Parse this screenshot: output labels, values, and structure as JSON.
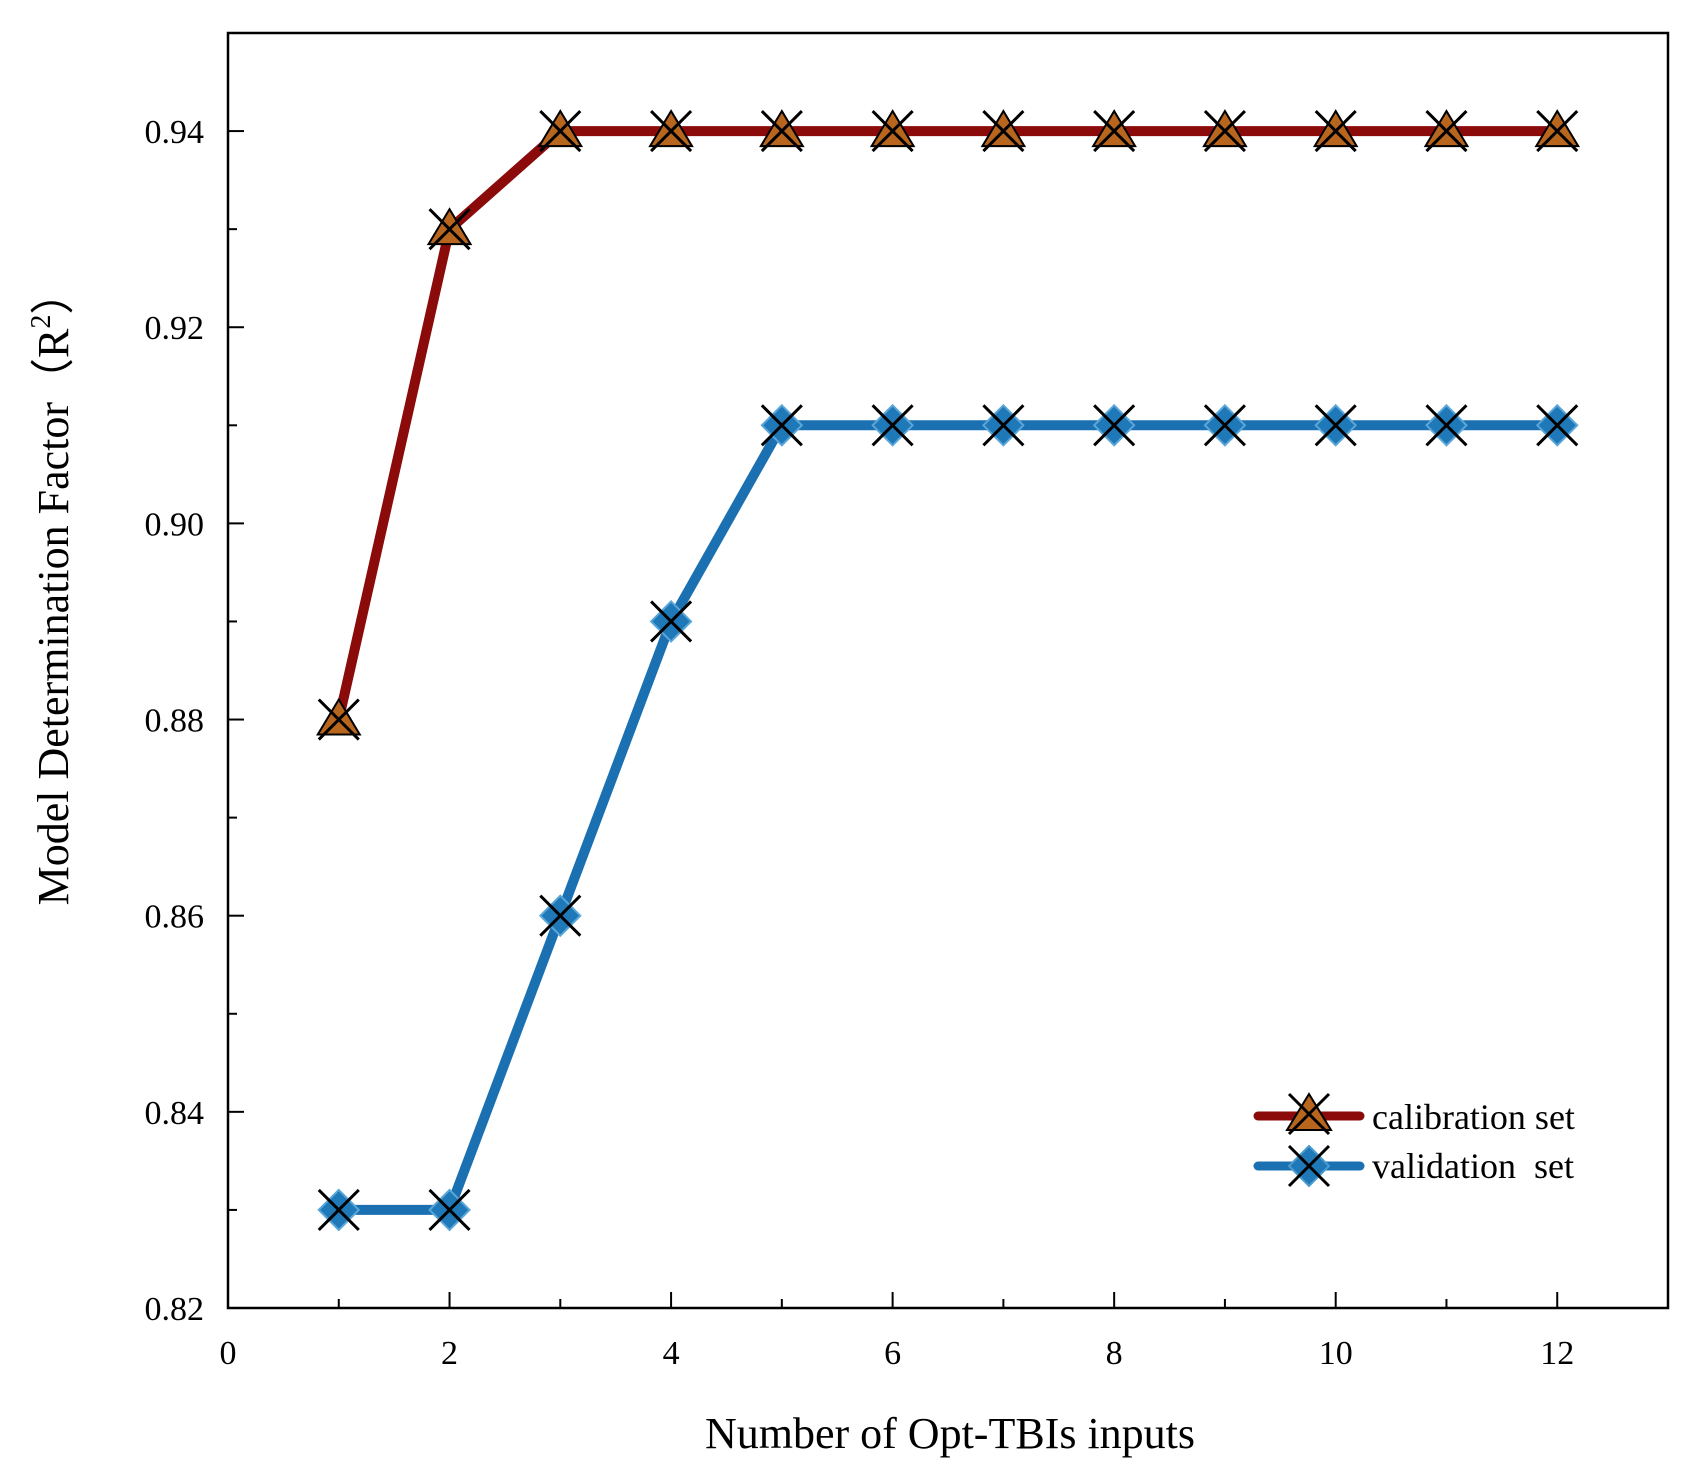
{
  "chart_data": {
    "type": "line",
    "title": "",
    "xlabel": "Number of Opt-TBIs inputs",
    "ylabel": "Model Determination Factor（R",
    "ylabel_sup": "2",
    "ylabel_end": "）",
    "xlim": [
      0,
      13
    ],
    "ylim": [
      0.82,
      0.95
    ],
    "xticks": [
      0,
      2,
      4,
      6,
      8,
      10,
      12
    ],
    "xtick_labels": [
      "0",
      "2",
      "4",
      "6",
      "8",
      "10",
      "12"
    ],
    "yticks": [
      0.82,
      0.84,
      0.86,
      0.88,
      0.9,
      0.92,
      0.94
    ],
    "ytick_labels": [
      "0.82",
      "0.84",
      "0.86",
      "0.88",
      "0.90",
      "0.92",
      "0.94"
    ],
    "x": [
      1,
      2,
      3,
      4,
      5,
      6,
      7,
      8,
      9,
      10,
      11,
      12
    ],
    "legend_position": "bottom-right",
    "series": [
      {
        "name": "calibration set",
        "marker": "triangle",
        "color": "#8b0a0a",
        "marker_color": "#b8651e",
        "values": [
          0.88,
          0.93,
          0.94,
          0.94,
          0.94,
          0.94,
          0.94,
          0.94,
          0.94,
          0.94,
          0.94,
          0.94
        ]
      },
      {
        "name": "validation  set",
        "marker": "diamond",
        "color": "#1a70b0",
        "marker_color": "#1f78b8",
        "values": [
          0.83,
          0.83,
          0.86,
          0.89,
          0.91,
          0.91,
          0.91,
          0.91,
          0.91,
          0.91,
          0.91,
          0.91
        ]
      }
    ]
  }
}
